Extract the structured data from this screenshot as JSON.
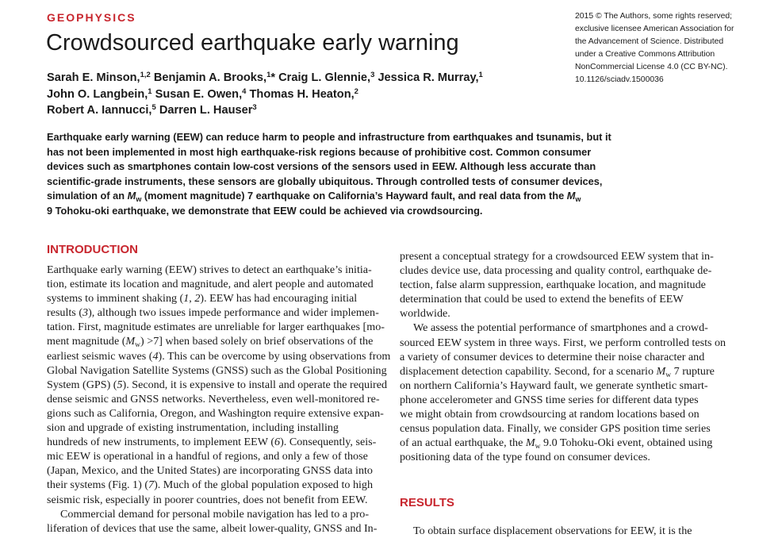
{
  "header": {
    "section_label": "GEOPHYSICS",
    "title": "Crowdsourced earthquake early warning",
    "license_lines": [
      "2015 © The Authors, some rights reserved;",
      "exclusive licensee American Association for",
      "the Advancement of Science. Distributed",
      "under a Creative Commons Attribution",
      "NonCommercial License 4.0 (CC BY-NC).",
      "10.1126/sciadv.1500036"
    ]
  },
  "authors": {
    "a1": {
      "name": "Sarah E. Minson,",
      "sup": "1,2"
    },
    "a2": {
      "name": "Benjamin A. Brooks,",
      "sup": "1",
      "mark": "*"
    },
    "a3": {
      "name": "Craig L. Glennie,",
      "sup": "3"
    },
    "a4": {
      "name": "Jessica R. Murray,",
      "sup": "1"
    },
    "a5": {
      "name": "John O. Langbein,",
      "sup": "1"
    },
    "a6": {
      "name": "Susan E. Owen,",
      "sup": "4"
    },
    "a7": {
      "name": "Thomas H. Heaton,",
      "sup": "2"
    },
    "a8": {
      "name": "Robert A. Iannucci,",
      "sup": "5"
    },
    "a9": {
      "name": "Darren L. Hauser",
      "sup": "3"
    }
  },
  "abstract": {
    "l1": "Earthquake early warning (EEW) can reduce harm to people and infrastructure from earthquakes and tsunamis, but it",
    "l2": "has not been implemented in most high earthquake-risk regions because of prohibitive cost. Common consumer",
    "l3": "devices such as smartphones contain low-cost versions of the sensors used in EEW. Although less accurate than",
    "l4": "scientific-grade instruments, these sensors are globally ubiquitous. Through controlled tests of consumer devices,",
    "l5a": "simulation of an ",
    "l5b": " (moment magnitude) 7 earthquake on California’s Hayward fault, and real data from the ",
    "mw_m": "M",
    "mw_w": "w",
    "l6": "9 Tohoku-oki earthquake, we demonstrate that EEW could be achieved via crowdsourcing."
  },
  "introduction": {
    "heading": "INTRODUCTION",
    "left": {
      "l1": "Earthquake early warning (EEW) strives to detect an earthquake’s initia-",
      "l2": "tion, estimate its location and magnitude, and alert people and automated",
      "l3a": "systems to imminent shaking (",
      "l3b": "1",
      "l3c": ", ",
      "l3d": "2",
      "l3e": "). EEW has had encouraging initial",
      "l4a": "results (",
      "l4b": "3",
      "l4c": "), although two issues impede performance and wider implemen-",
      "l5": "tation. First, magnitude estimates are unreliable for larger earthquakes [mo-",
      "l6a": "ment magnitude (",
      "l6b": "M",
      "l6c": "w",
      "l6d": ") >7] when based solely on brief observations of the",
      "l7a": "earliest seismic waves (",
      "l7b": "4",
      "l7c": "). This can be overcome by using observations from",
      "l8": "Global Navigation Satellite Systems (GNSS) such as the Global Positioning",
      "l9a": "System (GPS) (",
      "l9b": "5",
      "l9c": "). Second, it is expensive to install and operate the required",
      "l10": "dense seismic and GNSS networks. Nevertheless, even well-monitored re-",
      "l11": "gions such as California, Oregon, and Washington require extensive expan-",
      "l12": "sion and upgrade of existing instrumentation, including installing",
      "l13a": "hundreds of new instruments, to implement EEW (",
      "l13b": "6",
      "l13c": "). Consequently, seis-",
      "l14": "mic EEW is operational in a handful of regions, and only a few of those",
      "l15": "(Japan, Mexico, and the United States) are incorporating GNSS data into",
      "l16a": "their systems (Fig. 1) (",
      "l16b": "7",
      "l16c": "). Much of the global population exposed to high",
      "l17": "seismic risk, especially in poorer countries, does not benefit from EEW.",
      "l18": "Commercial demand for personal mobile navigation has led to a pro-",
      "l19": "liferation of devices that use the same, albeit lower-quality, GNSS and In-"
    },
    "right": {
      "l1": "present a conceptual strategy for a crowdsourced EEW system that in-",
      "l2": "cludes device use, data processing and quality control, earthquake de-",
      "l3": "tection, false alarm suppression, earthquake location, and magnitude",
      "l4": "determination that could be used to extend the benefits of EEW",
      "l5": "worldwide.",
      "l6": "We assess the potential performance of smartphones and a crowd-",
      "l7": "sourced EEW system in three ways. First, we perform controlled tests on",
      "l8": "a variety of consumer devices to determine their noise character and",
      "l9a": "displacement detection capability. Second, for a scenario ",
      "l9b": "M",
      "l9c": "w",
      "l9d": " 7 rupture",
      "l10": "on northern California’s Hayward fault, we generate synthetic smart-",
      "l11": "phone accelerometer and GNSS time series for different data types",
      "l12": "we might obtain from crowdsourcing at random locations based on",
      "l13": "census population data. Finally, we consider GPS position time series",
      "l14a": "of an actual earthquake, the ",
      "l14b": "M",
      "l14c": "w",
      "l14d": " 9.0 Tohoku-Oki event, obtained using",
      "l15": "positioning data of the type found on consumer devices."
    }
  },
  "results": {
    "heading": "RESULTS",
    "l1": "To obtain surface displacement observations for EEW, it is the"
  }
}
